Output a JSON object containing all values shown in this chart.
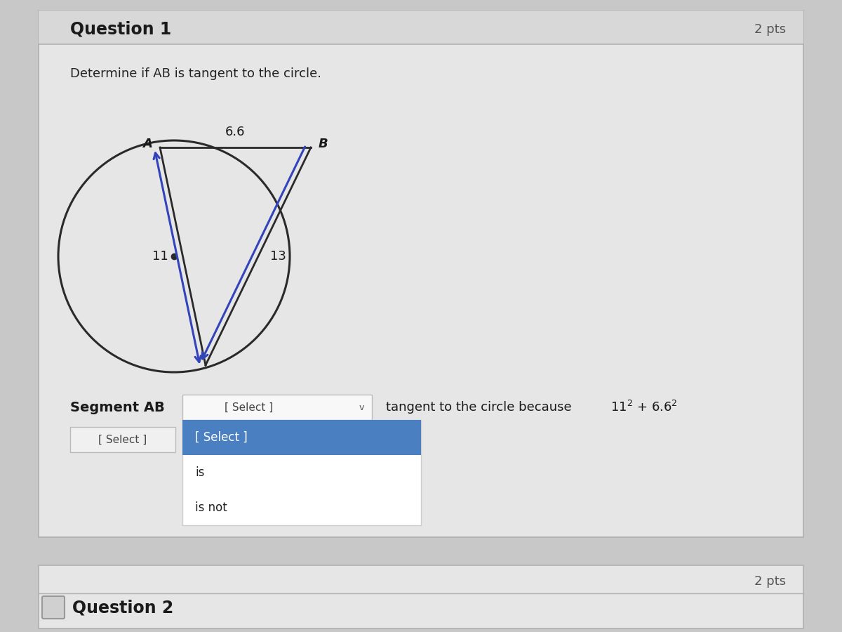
{
  "outer_bg": "#c8c8c8",
  "card_bg": "#e6e6e6",
  "card_bg2": "#e0e0e0",
  "title": "Question 1",
  "pts_label": "2 pts",
  "question_text": "Determine if AB is tangent to the circle.",
  "label_6_6": "6.6",
  "label_11": "11",
  "label_13": "13",
  "label_A": "A",
  "label_B": "B",
  "arrow_color": "#3344bb",
  "circle_color": "#2a2a2a",
  "line_color": "#2a2a2a",
  "segment_AB_text": "Segment AB",
  "select_box_text": "[ Select ]",
  "dropdown_items": [
    "[ Select ]",
    "is",
    "is not"
  ],
  "select2_text": "[ Select ]",
  "q2_text": "Question 2",
  "q2_pts": "2 pts",
  "highlight_blue": "#4a7fc1",
  "dropdown_bg": "#f0f0f0"
}
